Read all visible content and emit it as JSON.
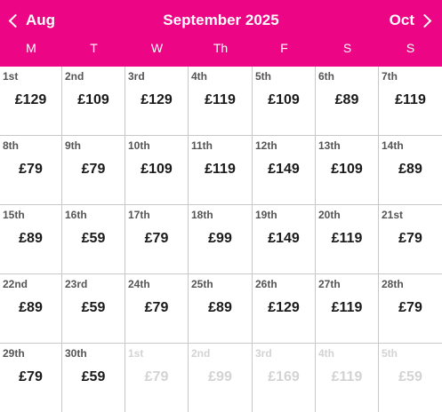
{
  "header": {
    "prev_label": "Aug",
    "title": "September 2025",
    "next_label": "Oct",
    "background": "#ec0584"
  },
  "weekdays": [
    "M",
    "T",
    "W",
    "Th",
    "F",
    "S",
    "S"
  ],
  "days": [
    {
      "day": "1st",
      "price": "£129"
    },
    {
      "day": "2nd",
      "price": "£109"
    },
    {
      "day": "3rd",
      "price": "£129"
    },
    {
      "day": "4th",
      "price": "£119"
    },
    {
      "day": "5th",
      "price": "£109"
    },
    {
      "day": "6th",
      "price": "£89"
    },
    {
      "day": "7th",
      "price": "£119"
    },
    {
      "day": "8th",
      "price": "£79"
    },
    {
      "day": "9th",
      "price": "£79"
    },
    {
      "day": "10th",
      "price": "£109"
    },
    {
      "day": "11th",
      "price": "£119"
    },
    {
      "day": "12th",
      "price": "£149"
    },
    {
      "day": "13th",
      "price": "£109"
    },
    {
      "day": "14th",
      "price": "£89"
    },
    {
      "day": "15th",
      "price": "£89"
    },
    {
      "day": "16th",
      "price": "£59"
    },
    {
      "day": "17th",
      "price": "£79"
    },
    {
      "day": "18th",
      "price": "£99"
    },
    {
      "day": "19th",
      "price": "£149"
    },
    {
      "day": "20th",
      "price": "£119"
    },
    {
      "day": "21st",
      "price": "£79"
    },
    {
      "day": "22nd",
      "price": "£89"
    },
    {
      "day": "23rd",
      "price": "£59"
    },
    {
      "day": "24th",
      "price": "£79"
    },
    {
      "day": "25th",
      "price": "£89"
    },
    {
      "day": "26th",
      "price": "£129"
    },
    {
      "day": "27th",
      "price": "£119"
    },
    {
      "day": "28th",
      "price": "£79"
    },
    {
      "day": "29th",
      "price": "£79"
    },
    {
      "day": "30th",
      "price": "£59"
    },
    {
      "day": "1st",
      "price": "£79",
      "muted": true
    },
    {
      "day": "2nd",
      "price": "£99",
      "muted": true
    },
    {
      "day": "3rd",
      "price": "£169",
      "muted": true
    },
    {
      "day": "4th",
      "price": "£119",
      "muted": true
    },
    {
      "day": "5th",
      "price": "£59",
      "muted": true
    }
  ]
}
